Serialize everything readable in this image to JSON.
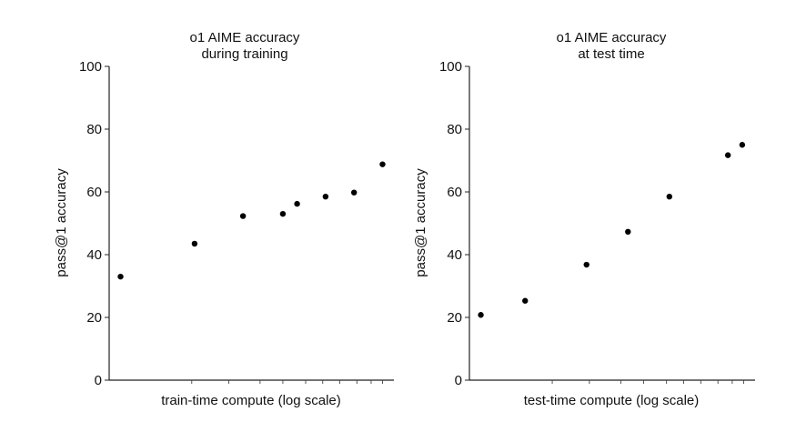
{
  "chart_data": [
    {
      "type": "scatter",
      "title": [
        "o1 AIME accuracy",
        "during training"
      ],
      "xlabel": "train-time compute (log scale)",
      "ylabel": "pass@1 accuracy",
      "ylim": [
        0,
        100
      ],
      "yticks": [
        0,
        20,
        40,
        60,
        80,
        100
      ],
      "xscale": "log",
      "xlim": [
        0,
        1
      ],
      "minor_ticks": [
        0.29,
        0.42,
        0.53,
        0.61,
        0.69,
        0.75,
        0.81,
        0.87,
        0.92,
        0.96
      ],
      "x": [
        0.04,
        0.3,
        0.47,
        0.61,
        0.66,
        0.76,
        0.86,
        0.96
      ],
      "y": [
        33,
        43.5,
        52.3,
        53,
        56.2,
        58.5,
        59.8,
        68.8
      ]
    },
    {
      "type": "scatter",
      "title": [
        "o1 AIME accuracy",
        "at test time"
      ],
      "xlabel": "test-time compute (log scale)",
      "ylabel": "pass@1 accuracy",
      "ylim": [
        0,
        100
      ],
      "yticks": [
        0,
        20,
        40,
        60,
        80,
        100
      ],
      "xscale": "log",
      "xlim": [
        0,
        1
      ],
      "minor_ticks": [
        0.29,
        0.42,
        0.53,
        0.61,
        0.69,
        0.75,
        0.81,
        0.87,
        0.92,
        0.96
      ],
      "x": [
        0.04,
        0.195,
        0.41,
        0.555,
        0.7,
        0.905,
        0.955
      ],
      "y": [
        20.8,
        25.3,
        36.8,
        47.3,
        58.5,
        71.7,
        75
      ]
    }
  ]
}
